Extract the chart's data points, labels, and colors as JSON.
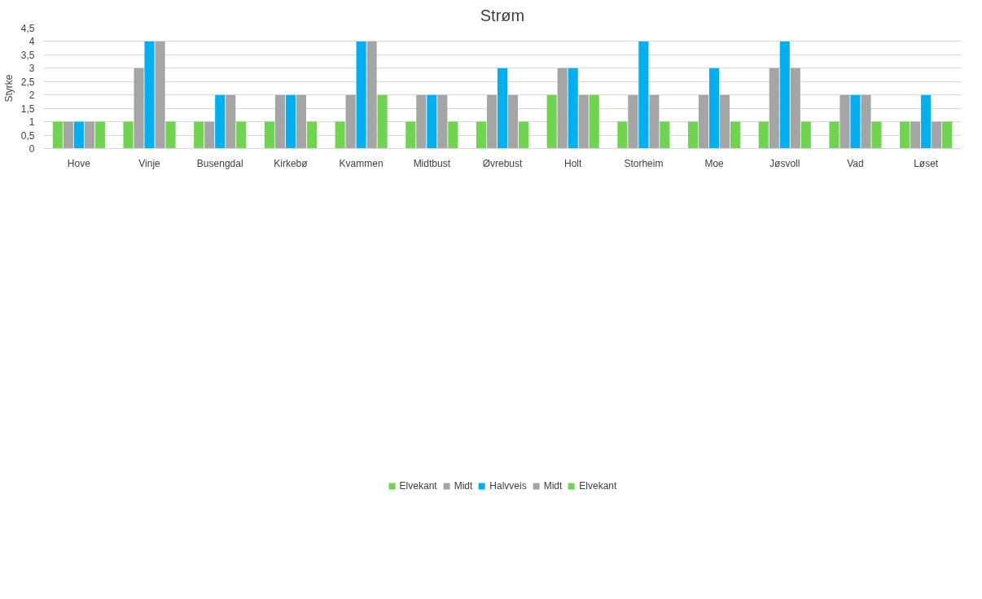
{
  "chart_data": {
    "type": "bar",
    "title": "Strøm",
    "ylabel": "Styrke",
    "categories": [
      "Hove",
      "Vinje",
      "Busengdal",
      "Kirkebø",
      "Kvammen",
      "Midtbust",
      "Øvrebust",
      "Holt",
      "Storheim",
      "Moe",
      "Jøsvoll",
      "Vad",
      "Løset"
    ],
    "series": [
      {
        "name": "Elvekant",
        "color": "#6fd44f",
        "values": [
          1,
          1,
          1,
          1,
          1,
          1,
          1,
          2,
          1,
          1,
          1,
          1,
          1
        ]
      },
      {
        "name": "Midt",
        "color": "#a5a5a5",
        "values": [
          1,
          3,
          1,
          2,
          2,
          2,
          2,
          3,
          2,
          2,
          3,
          2,
          1
        ]
      },
      {
        "name": "Halvveis",
        "color": "#00b0f0",
        "values": [
          1,
          4,
          2,
          2,
          4,
          2,
          3,
          3,
          4,
          3,
          4,
          2,
          2
        ]
      },
      {
        "name": "Midt",
        "color": "#a5a5a5",
        "values": [
          1,
          4,
          2,
          2,
          4,
          2,
          2,
          2,
          2,
          2,
          3,
          2,
          1
        ]
      },
      {
        "name": "Elvekant",
        "color": "#6fd44f",
        "values": [
          1,
          1,
          1,
          1,
          2,
          1,
          1,
          2,
          1,
          1,
          1,
          1,
          1
        ]
      }
    ],
    "ylim": [
      0,
      4.5
    ],
    "yticks": [
      {
        "value": 0,
        "label": "0"
      },
      {
        "value": 0.5,
        "label": "0,5"
      },
      {
        "value": 1,
        "label": "1"
      },
      {
        "value": 1.5,
        "label": "1,5"
      },
      {
        "value": 2,
        "label": "2"
      },
      {
        "value": 2.5,
        "label": "2,5"
      },
      {
        "value": 3,
        "label": "3"
      },
      {
        "value": 3.5,
        "label": "3,5"
      },
      {
        "value": 4,
        "label": "4"
      },
      {
        "value": 4.5,
        "label": "4,5"
      }
    ],
    "grid": "y",
    "legend": "bottom"
  }
}
